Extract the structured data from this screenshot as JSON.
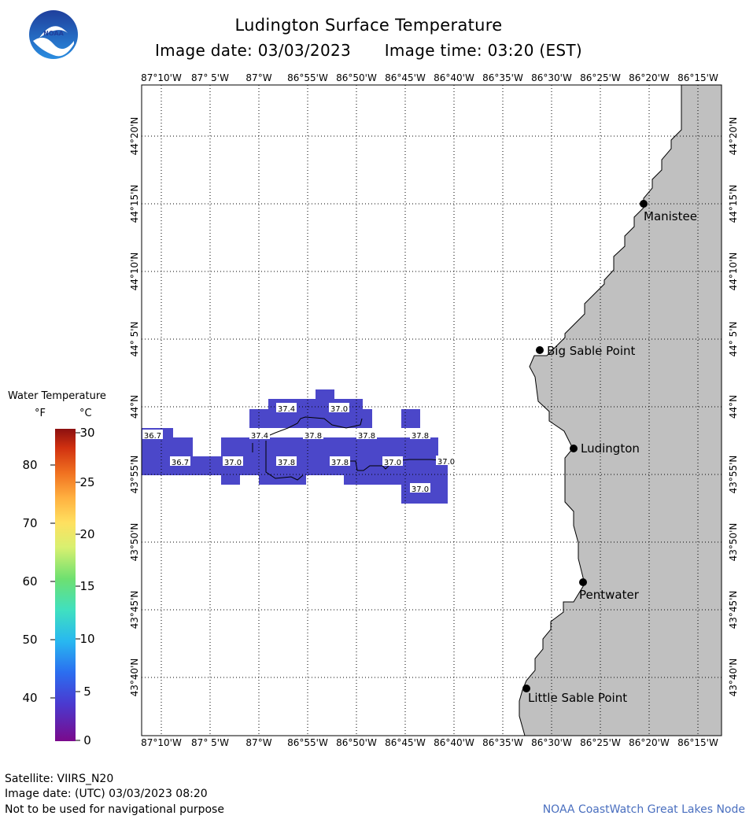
{
  "header": {
    "title": "Ludington Surface Temperature",
    "image_date": "Image date: 03/03/2023",
    "image_time": "Image time: 03:20 (EST)"
  },
  "logo": {
    "text": "NOAA"
  },
  "map": {
    "lon_labels": [
      "87°10'W",
      "87° 5'W",
      "87°W",
      "86°55'W",
      "86°50'W",
      "86°45'W",
      "86°40'W",
      "86°35'W",
      "86°30'W",
      "86°25'W",
      "86°20'W",
      "86°15'W"
    ],
    "lat_labels": [
      "44°20'N",
      "44°15'N",
      "44°10'N",
      "44° 5'N",
      "44°N",
      "43°55'N",
      "43°50'N",
      "43°45'N",
      "43°40'N"
    ],
    "places": [
      "Manistee",
      "Big Sable Point",
      "Ludington",
      "Pentwater",
      "Little Sable Point"
    ],
    "temp_labels": [
      "37.4",
      "37.0",
      "36.7",
      "37.4",
      "37.8",
      "37.8",
      "37.8",
      "36.7",
      "37.0",
      "37.8",
      "37.8",
      "37.0",
      "37.0",
      "37.0"
    ],
    "colors": {
      "land": "#c0c0c0",
      "water_temp": "#4b47c9",
      "grid": "#000000"
    }
  },
  "legend": {
    "title": "Water Temperature",
    "unit_f": "°F",
    "unit_c": "°C",
    "f_ticks": [
      "80",
      "70",
      "60",
      "50",
      "40"
    ],
    "c_ticks": [
      "30",
      "25",
      "20",
      "15",
      "10",
      "5",
      "0"
    ]
  },
  "footer": {
    "satellite": "Satellite: VIIRS_N20",
    "utc_date": "Image date: (UTC) 03/03/2023  08:20",
    "disclaimer": "Not to be used for navigational purpose",
    "credit": "NOAA CoastWatch Great Lakes Node"
  }
}
